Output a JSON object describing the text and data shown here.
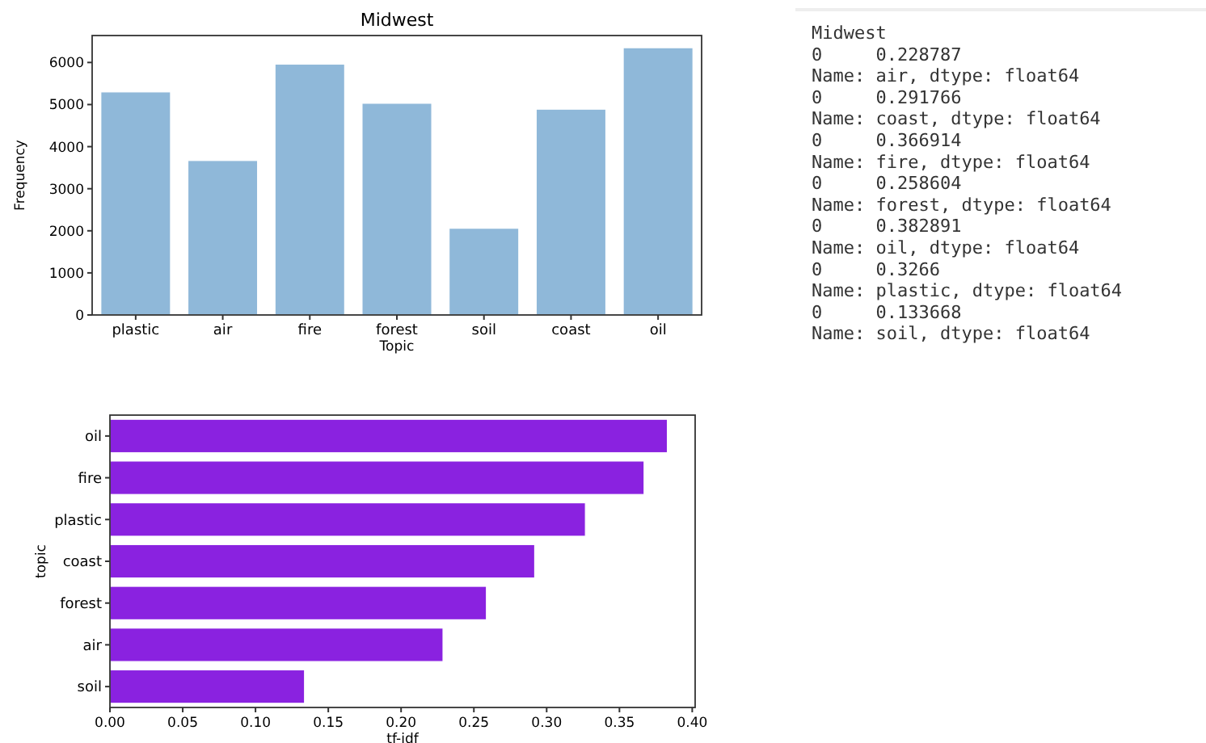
{
  "chart_data": [
    {
      "type": "bar",
      "title": "Midwest",
      "xlabel": "Topic",
      "ylabel": "Frequency",
      "categories": [
        "plastic",
        "air",
        "fire",
        "forest",
        "soil",
        "coast",
        "oil"
      ],
      "values": [
        5300,
        3670,
        5960,
        5030,
        2060,
        4890,
        6350
      ],
      "color": "#8fb8d9",
      "ylim": [
        0,
        6640
      ],
      "yticks": [
        0,
        1000,
        2000,
        3000,
        4000,
        5000,
        6000
      ],
      "grid": false
    },
    {
      "type": "other",
      "title": "Midwest",
      "annotations": [
        "0     0.228787",
        "Name: air, dtype: float64",
        "0     0.291766",
        "Name: coast, dtype: float64",
        "0     0.366914",
        "Name: fire, dtype: float64",
        "0     0.258604",
        "Name: forest, dtype: float64",
        "0     0.382891",
        "Name: oil, dtype: float64",
        "0     0.3266",
        "Name: plastic, dtype: float64",
        "0     0.133668",
        "Name: soil, dtype: float64"
      ]
    },
    {
      "type": "bar",
      "orientation": "horizontal",
      "xlabel": "tf-idf",
      "ylabel": "topic",
      "categories": [
        "oil",
        "fire",
        "plastic",
        "coast",
        "forest",
        "air",
        "soil"
      ],
      "values": [
        0.382891,
        0.366914,
        0.3266,
        0.291766,
        0.258604,
        0.228787,
        0.133668
      ],
      "color": "#8a22e0",
      "xlim": [
        0,
        0.402
      ],
      "xticks": [
        {
          "value": 0,
          "label": "0.00"
        },
        {
          "value": 0.05,
          "label": "0.05"
        },
        {
          "value": 0.1,
          "label": "0.10"
        },
        {
          "value": 0.15,
          "label": "0.15"
        },
        {
          "value": 0.2,
          "label": "0.20"
        },
        {
          "value": 0.25,
          "label": "0.25"
        },
        {
          "value": 0.3,
          "label": "0.30"
        },
        {
          "value": 0.35,
          "label": "0.35"
        },
        {
          "value": 0.4,
          "label": "0.40"
        }
      ],
      "grid": false
    }
  ]
}
